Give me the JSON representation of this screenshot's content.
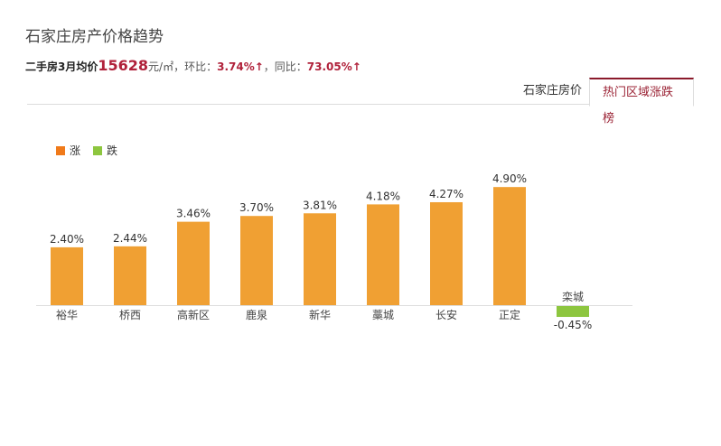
{
  "header": {
    "title": "石家庄房产价格趋势",
    "sub_prefix": "二手房3月均价",
    "price": "15628",
    "unit": "元/㎡",
    "mom_label": "，环比：",
    "mom": "3.74%↑",
    "yoy_label": "，同比：",
    "yoy": "73.05%↑"
  },
  "tabs": [
    {
      "label": "石家庄房价",
      "active": false
    },
    {
      "label": "热门区域涨跌榜",
      "active": true
    }
  ],
  "chart_data": {
    "type": "bar",
    "categories": [
      "裕华",
      "桥西",
      "高新区",
      "鹿泉",
      "新华",
      "藁城",
      "长安",
      "正定",
      "栾城"
    ],
    "values": [
      2.4,
      2.44,
      3.46,
      3.7,
      3.81,
      4.18,
      4.27,
      4.9,
      -0.45
    ],
    "labels": [
      "2.40%",
      "2.44%",
      "3.46%",
      "3.70%",
      "3.81%",
      "4.18%",
      "4.27%",
      "4.90%",
      "-0.45%"
    ],
    "legend": [
      {
        "name": "涨",
        "color": "#f0a033"
      },
      {
        "name": "跌",
        "color": "#8dc63f"
      }
    ],
    "legend_placement": "top-left",
    "grid": false
  }
}
